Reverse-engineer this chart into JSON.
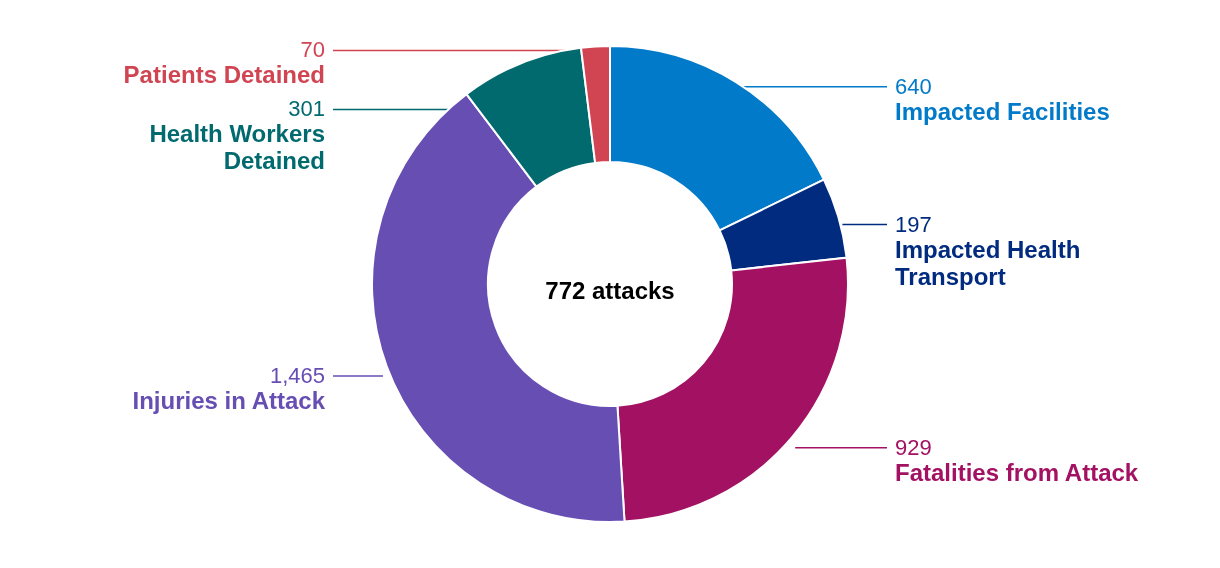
{
  "chart_data": {
    "type": "donut",
    "categories": [
      "Impacted Facilities",
      "Impacted Health Transport",
      "Fatalities from Attack",
      "Injuries in Attack",
      "Health Workers Detained",
      "Patients Detained"
    ],
    "values": [
      640,
      197,
      929,
      1465,
      301,
      70
    ],
    "colors": [
      "#007ac9",
      "#002b7f",
      "#a31162",
      "#674eb3",
      "#006a6f",
      "#d14553"
    ],
    "value_labels": [
      "640",
      "197",
      "929",
      "1,465",
      "301",
      "70"
    ],
    "annotations": [
      "772 attacks"
    ]
  }
}
